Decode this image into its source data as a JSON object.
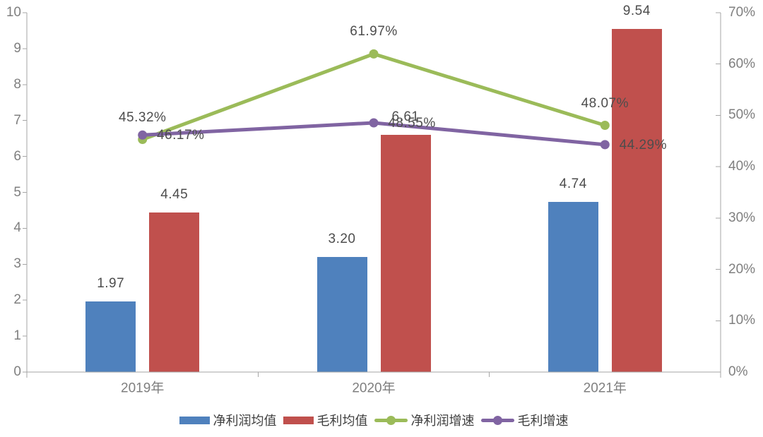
{
  "chart_data": {
    "type": "combo-bar-line",
    "title": "",
    "categories": [
      "2019年",
      "2020年",
      "2021年"
    ],
    "bar_series": [
      {
        "id": "net-profit-avg",
        "name": "净利润均值",
        "color": "#4F81BD",
        "axis": "left",
        "values": [
          1.97,
          3.2,
          4.74
        ],
        "value_labels": [
          "1.97",
          "3.20",
          "4.74"
        ]
      },
      {
        "id": "gross-profit-avg",
        "name": "毛利均值",
        "color": "#C0504D",
        "axis": "left",
        "values": [
          4.45,
          6.61,
          9.54
        ],
        "value_labels": [
          "4.45",
          "6.61",
          "9.54"
        ]
      }
    ],
    "line_series": [
      {
        "id": "net-profit-growth",
        "name": "净利润增速",
        "color": "#9BBB59",
        "axis": "right",
        "values": [
          45.32,
          61.97,
          48.07
        ],
        "value_labels": [
          "45.32%",
          "61.97%",
          "48.07%"
        ],
        "label_position": "above"
      },
      {
        "id": "gross-profit-growth",
        "name": "毛利增速",
        "color": "#8064A2",
        "axis": "right",
        "values": [
          46.17,
          48.55,
          44.29
        ],
        "value_labels": [
          "46.17%",
          "48.55%",
          "44.29%"
        ],
        "label_position": "right"
      }
    ],
    "left_axis": {
      "min": 0,
      "max": 10,
      "step": 1,
      "ticks": [
        "0",
        "1",
        "2",
        "3",
        "4",
        "5",
        "6",
        "7",
        "8",
        "9",
        "10"
      ]
    },
    "right_axis": {
      "min": 0,
      "max": 70,
      "step": 10,
      "ticks": [
        "0%",
        "10%",
        "20%",
        "30%",
        "40%",
        "50%",
        "60%",
        "70%"
      ]
    },
    "grid": "off",
    "legend_position": "bottom"
  },
  "colors": {
    "background": "#FFFFFF",
    "axis_line": "#A6A6A6",
    "tick_text": "#7F7F7F",
    "data_label_text": "#4D4D4D",
    "legend_text": "#404040"
  }
}
